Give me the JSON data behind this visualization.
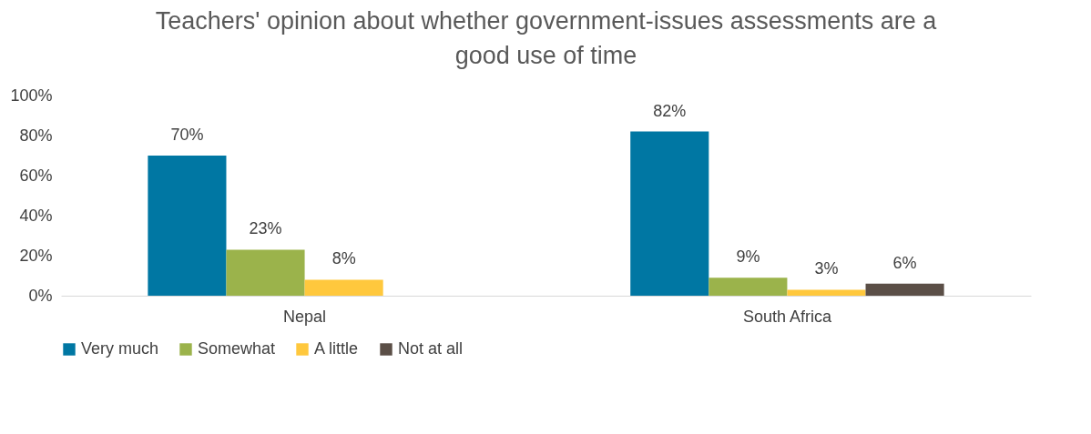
{
  "chart_data": {
    "type": "bar",
    "title": "Teachers' opinion about whether government-issues assessments are a good use of time",
    "categories": [
      "Nepal",
      "South Africa"
    ],
    "series": [
      {
        "name": "Very much",
        "color": "#0077a3",
        "values": [
          70,
          82
        ],
        "value_labels": [
          "70%",
          "82%"
        ]
      },
      {
        "name": "Somewhat",
        "color": "#9bb34b",
        "values": [
          23,
          9
        ],
        "value_labels": [
          "23%",
          "9%"
        ]
      },
      {
        "name": "A little",
        "color": "#ffc83d",
        "values": [
          8,
          3
        ],
        "value_labels": [
          "8%",
          "3%"
        ]
      },
      {
        "name": "Not at all",
        "color": "#5b4f47",
        "values": [
          null,
          6
        ],
        "value_labels": [
          null,
          "6%"
        ]
      }
    ],
    "ylim": [
      0,
      100
    ],
    "yticks": [
      {
        "value": 0,
        "label": "0%"
      },
      {
        "value": 20,
        "label": "20%"
      },
      {
        "value": 40,
        "label": "40%"
      },
      {
        "value": 60,
        "label": "60%"
      },
      {
        "value": 80,
        "label": "80%"
      },
      {
        "value": 100,
        "label": "100%"
      }
    ],
    "grid": false,
    "legend": "bottom"
  }
}
